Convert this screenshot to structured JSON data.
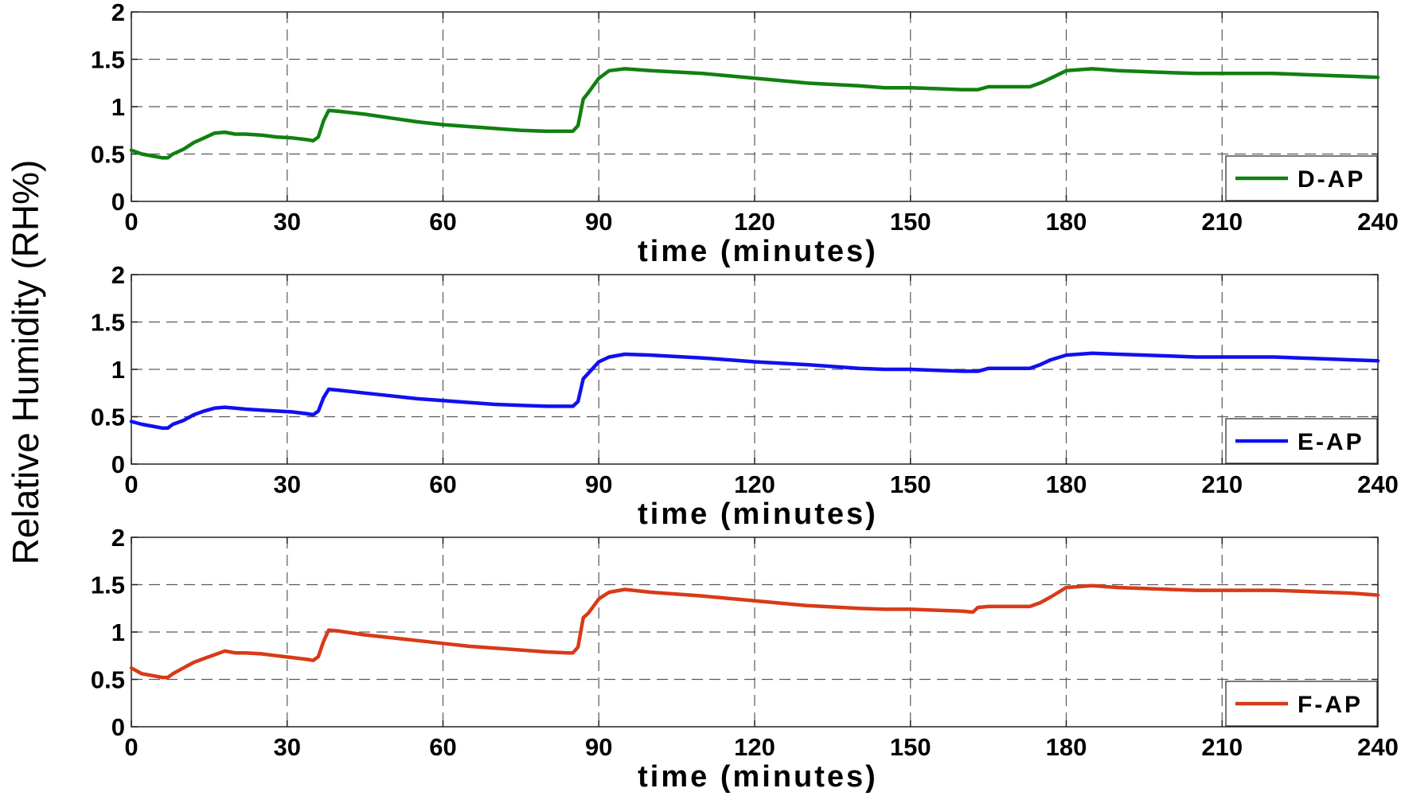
{
  "figure": {
    "ylabel": "Relative Humidity (RH%)"
  },
  "chart_data": [
    {
      "type": "line",
      "xlabel": "time (minutes)",
      "ylabel": "",
      "xlim": [
        0,
        240
      ],
      "ylim": [
        0,
        2
      ],
      "xticks": [
        "0",
        "30",
        "60",
        "90",
        "120",
        "150",
        "180",
        "210",
        "240"
      ],
      "yticks": [
        "0",
        "0.5",
        "1",
        "1.5",
        "2"
      ],
      "grid": true,
      "legend_position": "bottom-right",
      "series": [
        {
          "name": "D-AP",
          "color": "#118011",
          "x": [
            0,
            2,
            4,
            6,
            7,
            8,
            10,
            12,
            14,
            16,
            18,
            20,
            22,
            25,
            28,
            31,
            34,
            35,
            36,
            37,
            38,
            40,
            45,
            50,
            55,
            60,
            65,
            70,
            75,
            80,
            84,
            85,
            86,
            87,
            88,
            90,
            92,
            95,
            100,
            110,
            120,
            130,
            140,
            145,
            150,
            155,
            160,
            163,
            165,
            170,
            173,
            175,
            177,
            180,
            185,
            190,
            195,
            200,
            205,
            210,
            215,
            220,
            225,
            230,
            235,
            240
          ],
          "y": [
            0.54,
            0.5,
            0.48,
            0.46,
            0.46,
            0.5,
            0.55,
            0.62,
            0.67,
            0.72,
            0.73,
            0.71,
            0.71,
            0.7,
            0.68,
            0.67,
            0.65,
            0.64,
            0.68,
            0.85,
            0.96,
            0.95,
            0.92,
            0.88,
            0.84,
            0.81,
            0.79,
            0.77,
            0.75,
            0.74,
            0.74,
            0.74,
            0.8,
            1.08,
            1.15,
            1.3,
            1.38,
            1.4,
            1.38,
            1.35,
            1.3,
            1.25,
            1.22,
            1.2,
            1.2,
            1.19,
            1.18,
            1.18,
            1.21,
            1.21,
            1.21,
            1.25,
            1.3,
            1.38,
            1.4,
            1.38,
            1.37,
            1.36,
            1.35,
            1.35,
            1.35,
            1.35,
            1.34,
            1.33,
            1.32,
            1.31
          ]
        }
      ]
    },
    {
      "type": "line",
      "xlabel": "time (minutes)",
      "ylabel": "",
      "xlim": [
        0,
        240
      ],
      "ylim": [
        0,
        2
      ],
      "xticks": [
        "0",
        "30",
        "60",
        "90",
        "120",
        "150",
        "180",
        "210",
        "240"
      ],
      "yticks": [
        "0",
        "0.5",
        "1",
        "1.5",
        "2"
      ],
      "grid": true,
      "legend_position": "bottom-right",
      "series": [
        {
          "name": "E-AP",
          "color": "#1010F0",
          "x": [
            0,
            2,
            4,
            6,
            7,
            8,
            10,
            12,
            14,
            16,
            18,
            20,
            22,
            25,
            28,
            31,
            34,
            35,
            36,
            37,
            38,
            40,
            45,
            50,
            55,
            60,
            65,
            70,
            75,
            80,
            84,
            85,
            86,
            87,
            88,
            90,
            92,
            95,
            100,
            110,
            120,
            130,
            140,
            145,
            150,
            155,
            160,
            163,
            165,
            170,
            173,
            175,
            177,
            180,
            185,
            190,
            195,
            200,
            205,
            210,
            215,
            220,
            225,
            230,
            235,
            240
          ],
          "y": [
            0.45,
            0.42,
            0.4,
            0.38,
            0.38,
            0.42,
            0.46,
            0.52,
            0.56,
            0.59,
            0.6,
            0.59,
            0.58,
            0.57,
            0.56,
            0.55,
            0.53,
            0.52,
            0.56,
            0.7,
            0.79,
            0.78,
            0.75,
            0.72,
            0.69,
            0.67,
            0.65,
            0.63,
            0.62,
            0.61,
            0.61,
            0.61,
            0.66,
            0.9,
            0.96,
            1.08,
            1.13,
            1.16,
            1.15,
            1.12,
            1.08,
            1.05,
            1.01,
            1.0,
            1.0,
            0.99,
            0.98,
            0.98,
            1.01,
            1.01,
            1.01,
            1.05,
            1.1,
            1.15,
            1.17,
            1.16,
            1.15,
            1.14,
            1.13,
            1.13,
            1.13,
            1.13,
            1.12,
            1.11,
            1.1,
            1.09
          ]
        }
      ]
    },
    {
      "type": "line",
      "xlabel": "time (minutes)",
      "ylabel": "",
      "xlim": [
        0,
        240
      ],
      "ylim": [
        0,
        2
      ],
      "xticks": [
        "0",
        "30",
        "60",
        "90",
        "120",
        "150",
        "180",
        "210",
        "240"
      ],
      "yticks": [
        "0",
        "0.5",
        "1",
        "1.5",
        "2"
      ],
      "grid": true,
      "legend_position": "bottom-right",
      "series": [
        {
          "name": "F-AP",
          "color": "#D93A17",
          "x": [
            0,
            2,
            4,
            6,
            7,
            8,
            10,
            12,
            14,
            16,
            18,
            20,
            22,
            25,
            28,
            31,
            34,
            35,
            36,
            37,
            38,
            40,
            45,
            50,
            55,
            60,
            65,
            70,
            75,
            80,
            84,
            85,
            86,
            87,
            88,
            90,
            92,
            95,
            100,
            110,
            120,
            130,
            140,
            145,
            150,
            155,
            160,
            162,
            163,
            165,
            170,
            173,
            175,
            177,
            180,
            185,
            190,
            195,
            200,
            205,
            210,
            215,
            220,
            225,
            230,
            235,
            240
          ],
          "y": [
            0.62,
            0.56,
            0.54,
            0.52,
            0.52,
            0.56,
            0.62,
            0.68,
            0.72,
            0.76,
            0.8,
            0.78,
            0.78,
            0.77,
            0.75,
            0.73,
            0.71,
            0.7,
            0.74,
            0.9,
            1.02,
            1.01,
            0.97,
            0.94,
            0.91,
            0.88,
            0.85,
            0.83,
            0.81,
            0.79,
            0.78,
            0.78,
            0.84,
            1.15,
            1.2,
            1.35,
            1.42,
            1.45,
            1.42,
            1.38,
            1.33,
            1.28,
            1.25,
            1.24,
            1.24,
            1.23,
            1.22,
            1.21,
            1.26,
            1.27,
            1.27,
            1.27,
            1.31,
            1.37,
            1.47,
            1.49,
            1.47,
            1.46,
            1.45,
            1.44,
            1.44,
            1.44,
            1.44,
            1.43,
            1.42,
            1.41,
            1.39
          ]
        }
      ]
    }
  ]
}
